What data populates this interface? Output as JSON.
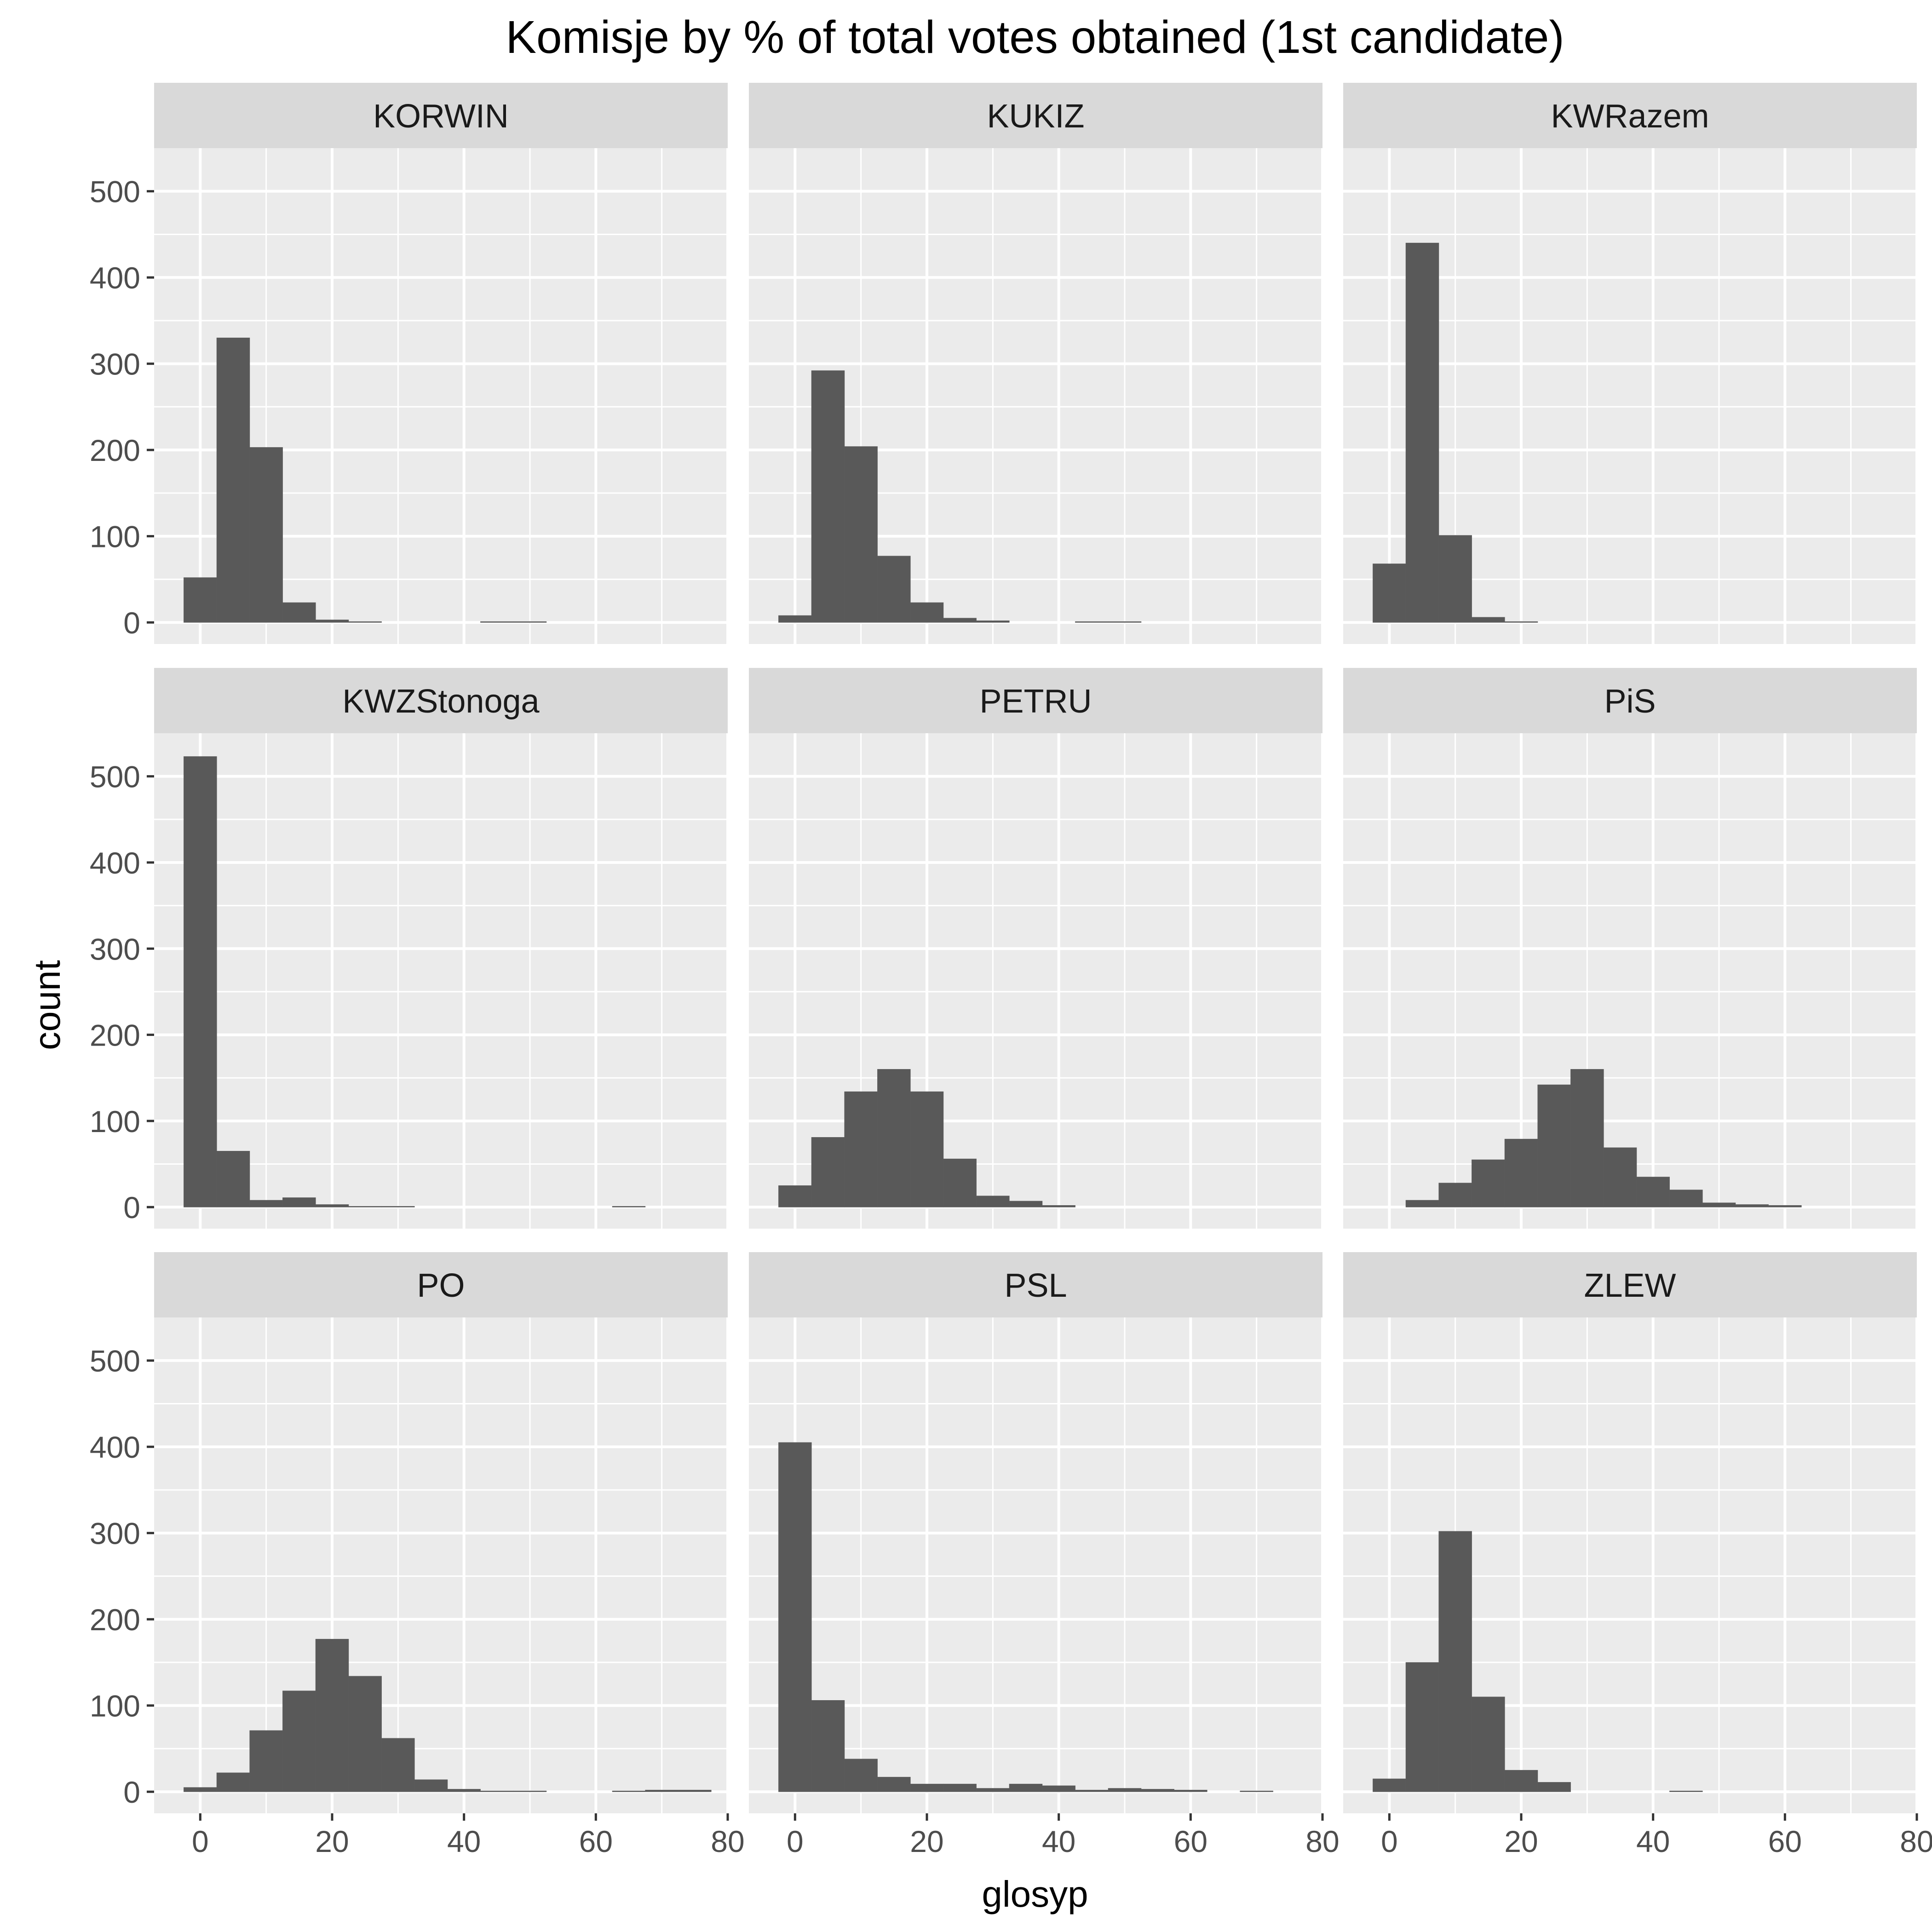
{
  "chart_data": {
    "type": "bar",
    "title": "Komisje by % of total votes obtained (1st candidate)",
    "xlabel": "glosyp",
    "ylabel": "count",
    "xlim": [
      -7,
      80
    ],
    "ylim": [
      -25,
      550
    ],
    "x_ticks": [
      0,
      20,
      40,
      60,
      80
    ],
    "y_ticks": [
      0,
      100,
      200,
      300,
      400,
      500
    ],
    "bin_width": 5,
    "bin_starts": [
      -2.5,
      2.5,
      7.5,
      12.5,
      17.5,
      22.5,
      27.5,
      32.5,
      37.5,
      42.5,
      47.5,
      52.5,
      57.5,
      62.5,
      67.5,
      72.5
    ],
    "grid": true,
    "colors": {
      "bar": "#595959",
      "panel_bg": "#ebebeb",
      "strip_bg": "#d9d9d9",
      "grid": "#ffffff",
      "text": "#4d4d4d",
      "title": "#000000"
    },
    "facets": [
      {
        "name": "KORWIN",
        "values": [
          52,
          330,
          203,
          23,
          3,
          1,
          0,
          0,
          0,
          1,
          1,
          0,
          0,
          0,
          0,
          0
        ]
      },
      {
        "name": "KUKIZ",
        "values": [
          8,
          292,
          204,
          77,
          23,
          5,
          2,
          0,
          0,
          1,
          1,
          0,
          0,
          0,
          0,
          0
        ]
      },
      {
        "name": "KWRazem",
        "values": [
          68,
          440,
          101,
          6,
          1,
          0,
          0,
          0,
          0,
          0,
          0,
          0,
          0,
          0,
          0,
          0
        ]
      },
      {
        "name": "KWZStonoga",
        "values": [
          523,
          65,
          8,
          11,
          3,
          1,
          1,
          0,
          0,
          0,
          0,
          0,
          0,
          1,
          0,
          0
        ]
      },
      {
        "name": "PETRU",
        "values": [
          25,
          81,
          134,
          160,
          134,
          56,
          13,
          7,
          2,
          0,
          0,
          0,
          0,
          0,
          0,
          0
        ]
      },
      {
        "name": "PiS",
        "values": [
          0,
          8,
          28,
          55,
          79,
          142,
          160,
          69,
          35,
          20,
          5,
          3,
          2,
          0,
          0,
          0
        ]
      },
      {
        "name": "PO",
        "values": [
          5,
          22,
          71,
          117,
          177,
          134,
          62,
          14,
          3,
          1,
          1,
          0,
          0,
          1,
          2,
          2
        ]
      },
      {
        "name": "PSL",
        "values": [
          405,
          106,
          38,
          17,
          9,
          9,
          4,
          9,
          7,
          2,
          4,
          3,
          2,
          0,
          1,
          0
        ]
      },
      {
        "name": "ZLEW",
        "values": [
          15,
          150,
          302,
          110,
          25,
          11,
          0,
          0,
          0,
          1,
          0,
          0,
          0,
          0,
          0,
          0
        ]
      }
    ]
  }
}
